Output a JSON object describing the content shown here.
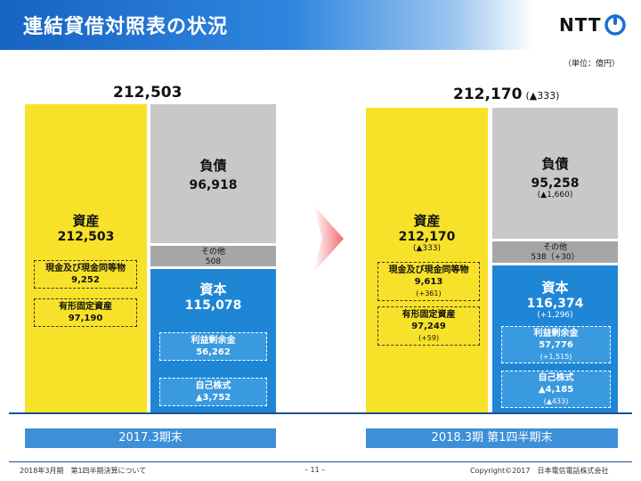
{
  "header": {
    "title": "連結貸借対照表の状況"
  },
  "logo": {
    "text": "NTT"
  },
  "unit": "（単位：億円）",
  "colors": {
    "asset": "#f8e229",
    "liability": "#c8c8c8",
    "other": "#a6a6a6",
    "equity": "#1f86d6",
    "header": "#1763c2"
  },
  "chart_data": {
    "type": "bar",
    "categories": [
      "2017.3期末",
      "2018.3期 第1四半期末"
    ],
    "left": {
      "total": "212,503",
      "asset": {
        "label": "資産",
        "value": "212,503",
        "sub": [
          {
            "label": "現金及び現金同等物",
            "value": "9,252"
          },
          {
            "label": "有形固定資産",
            "value": "97,190"
          }
        ]
      },
      "liability": {
        "label": "負債",
        "value": "96,918"
      },
      "other": {
        "label": "その他",
        "value": "508"
      },
      "equity": {
        "label": "資本",
        "value": "115,078",
        "sub": [
          {
            "label": "利益剰余金",
            "value": "56,262"
          },
          {
            "label": "自己株式",
            "value": "▲3,752"
          }
        ]
      }
    },
    "right": {
      "total": "212,170",
      "total_delta": "(▲333)",
      "asset": {
        "label": "資産",
        "value": "212,170",
        "delta": "(▲333)",
        "sub": [
          {
            "label": "現金及び現金同等物",
            "value": "9,613",
            "delta": "(+361)"
          },
          {
            "label": "有形固定資産",
            "value": "97,249",
            "delta": "(+59)"
          }
        ]
      },
      "liability": {
        "label": "負債",
        "value": "95,258",
        "delta": "(▲1,660)"
      },
      "other": {
        "label": "その他",
        "value": "538（+30）"
      },
      "equity": {
        "label": "資本",
        "value": "116,374",
        "delta": "(+1,296)",
        "sub": [
          {
            "label": "利益剰余金",
            "value": "57,776",
            "delta": "(+1,515)"
          },
          {
            "label": "自己株式",
            "value": "▲4,185",
            "delta": "(▲433)"
          }
        ]
      }
    }
  },
  "footer": {
    "left": "2018年3月期　第1四半期決算について",
    "page": "– 11 –",
    "copyright": "Copyright©2017　日本電信電話株式会社"
  }
}
